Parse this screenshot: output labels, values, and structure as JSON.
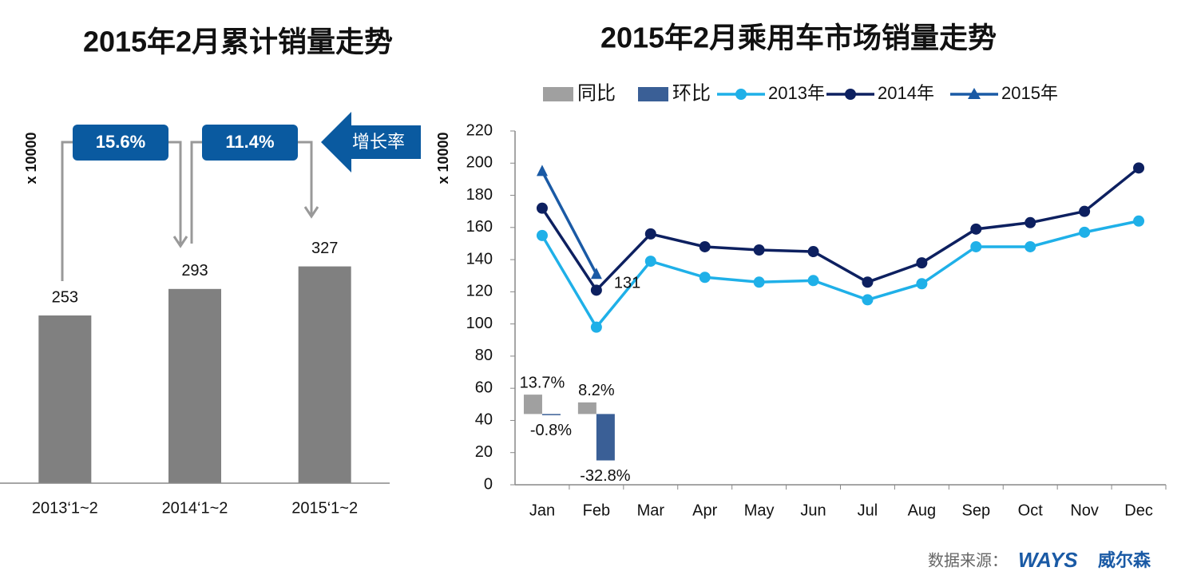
{
  "chart_data": [
    {
      "type": "bar",
      "title": "2015年2月累计销量走势",
      "ylabel": "x 10000",
      "categories": [
        "2013‘1~2",
        "2014‘1~2",
        "2015‘1~2"
      ],
      "values": [
        253,
        293,
        327
      ],
      "color": "#808080",
      "ylim": [
        0,
        400
      ],
      "annotations": [
        "15.6%",
        "11.4%",
        "增长率"
      ]
    },
    {
      "type": "line",
      "title": "2015年2月乘用车市场销量走势",
      "ylabel": "x 10000",
      "categories": [
        "Jan",
        "Feb",
        "Mar",
        "Apr",
        "May",
        "Jun",
        "Jul",
        "Aug",
        "Sep",
        "Oct",
        "Nov",
        "Dec"
      ],
      "ylim": [
        0,
        220
      ],
      "yticks": [
        0,
        20,
        40,
        60,
        80,
        100,
        120,
        140,
        160,
        180,
        200,
        220
      ],
      "y2lim": [
        -50,
        200
      ],
      "series": [
        {
          "name": "同比",
          "type": "bar",
          "axis": "y2",
          "color": "#a0a0a0",
          "values": [
            13.7,
            8.2,
            null,
            null,
            null,
            null,
            null,
            null,
            null,
            null,
            null,
            null
          ],
          "value_labels": [
            "13.7%",
            "8.2%",
            null,
            null,
            null,
            null,
            null,
            null,
            null,
            null,
            null,
            null
          ]
        },
        {
          "name": "环比",
          "type": "bar",
          "axis": "y2",
          "color": "#3a5f96",
          "values": [
            -0.8,
            -32.8,
            null,
            null,
            null,
            null,
            null,
            null,
            null,
            null,
            null,
            null
          ],
          "value_labels": [
            "-0.8%",
            "-32.8%",
            null,
            null,
            null,
            null,
            null,
            null,
            null,
            null,
            null,
            null
          ]
        },
        {
          "name": "2013年",
          "type": "line",
          "marker": "circle",
          "color": "#1fb0e8",
          "values": [
            155,
            98,
            139,
            129,
            126,
            127,
            115,
            125,
            148,
            148,
            157,
            164
          ]
        },
        {
          "name": "2014年",
          "type": "line",
          "marker": "circle",
          "color": "#0d2060",
          "values": [
            172,
            121,
            156,
            148,
            146,
            145,
            126,
            138,
            159,
            163,
            170,
            197
          ]
        },
        {
          "name": "2015年",
          "type": "line",
          "marker": "triangle",
          "color": "#1a5aa5",
          "label_last": true,
          "values": [
            195,
            131,
            null,
            null,
            null,
            null,
            null,
            null,
            null,
            null,
            null,
            null
          ]
        }
      ]
    }
  ],
  "footer": {
    "source": "数据来源：",
    "logo": "WAYS",
    "brand": "威尔森"
  }
}
